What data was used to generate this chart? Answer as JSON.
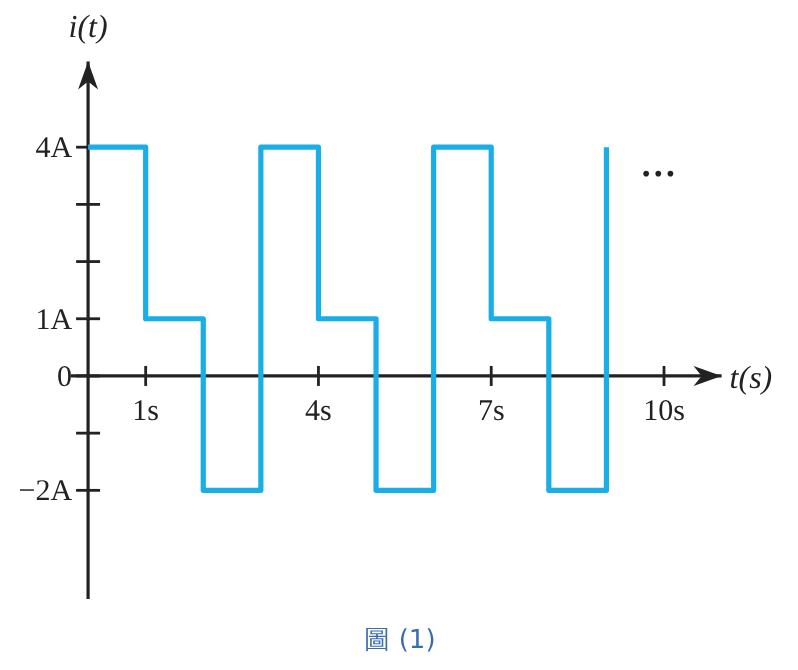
{
  "chart_data": {
    "type": "step",
    "xlabel": "t(s)",
    "ylabel": "i(t)",
    "x": [
      0,
      1,
      2,
      3,
      4,
      5,
      6,
      7,
      8,
      9
    ],
    "series": [
      {
        "color": "#1aaee6",
        "values": [
          4,
          1,
          -2,
          4,
          1,
          -2,
          4,
          1,
          -2,
          4
        ]
      }
    ],
    "xlim": [
      -0.3,
      11
    ],
    "ylim": [
      -3.9,
      5.5
    ],
    "xticks": [
      {
        "value": 1,
        "label": "1s"
      },
      {
        "value": 4,
        "label": "4s"
      },
      {
        "value": 7,
        "label": "7s"
      },
      {
        "value": 10,
        "label": "10s"
      }
    ],
    "yticks": [
      {
        "value": 4,
        "label": "4A"
      },
      {
        "value": 3,
        "label": null
      },
      {
        "value": 2,
        "label": null
      },
      {
        "value": 1,
        "label": "1A"
      },
      0,
      {
        "value": -1,
        "label": null
      },
      {
        "value": -2,
        "label": "−2A"
      }
    ],
    "grid": false,
    "annotations": [
      "…",
      "圖 (1)"
    ]
  }
}
